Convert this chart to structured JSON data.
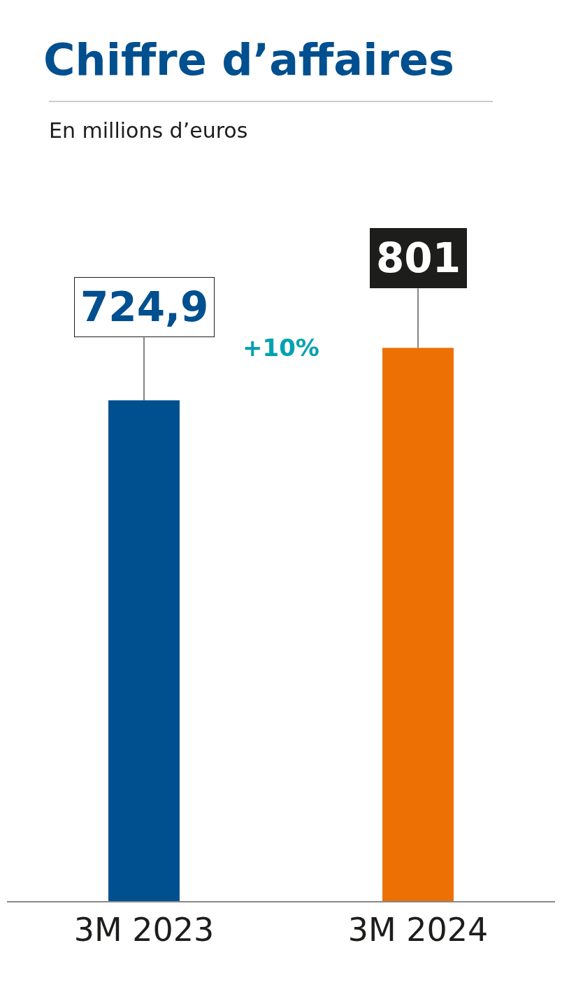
{
  "chart_data": {
    "type": "bar",
    "title": "Chiffre d’affaires",
    "subtitle": "En millions d’euros",
    "categories": [
      "3M 2023",
      "3M 2024"
    ],
    "values": [
      724.9,
      801
    ],
    "colors": [
      "#004f8f",
      "#ec7004"
    ],
    "value_labels": [
      "724,9",
      "801"
    ],
    "annotations": [
      "+10%"
    ]
  }
}
